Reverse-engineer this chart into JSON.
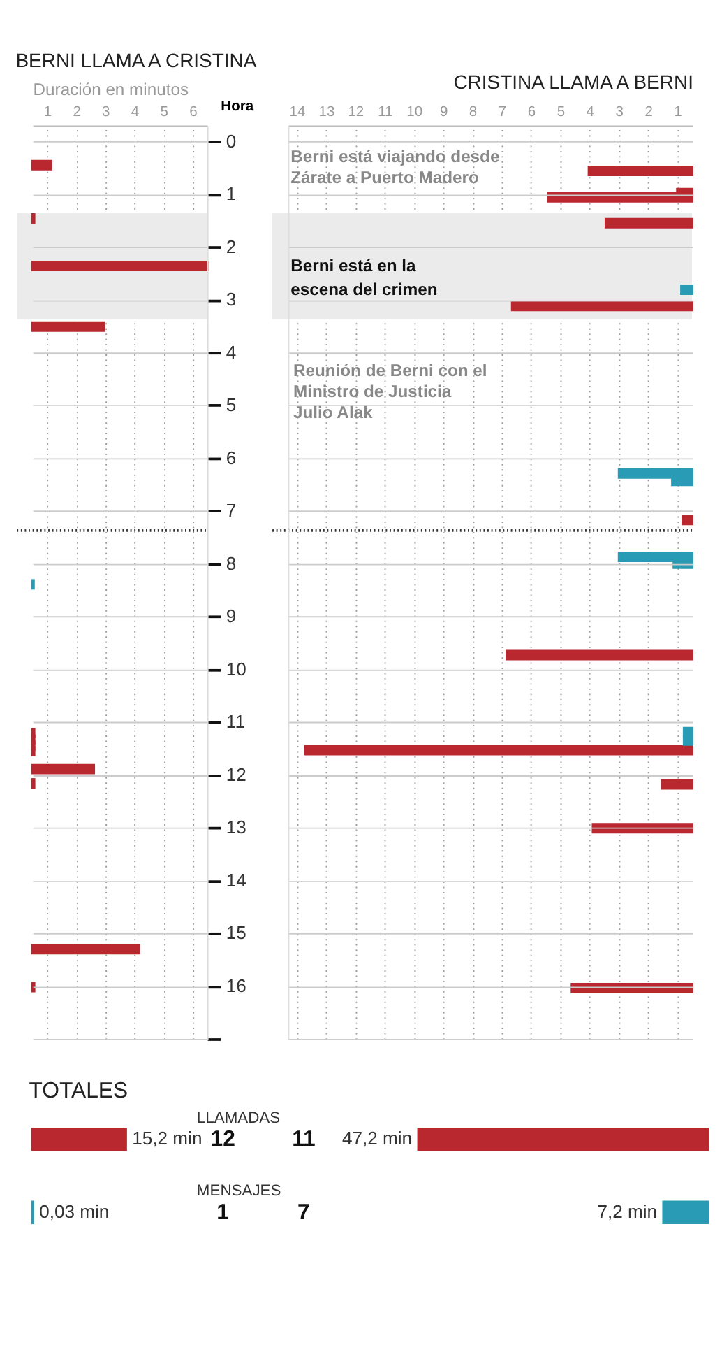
{
  "chart_data": [
    {
      "type": "bar",
      "orientation": "horizontal",
      "title": "BERNI LLAMA A CRISTINA",
      "xlabel": "Duración en minutos",
      "ylabel": "Hora",
      "xlim": [
        0,
        6
      ],
      "xticks": [
        {
          "value": 0.5,
          "label": "1"
        },
        {
          "value": 1.5,
          "label": "2"
        },
        {
          "value": 2.5,
          "label": "3"
        },
        {
          "value": 3.5,
          "label": "4"
        },
        {
          "value": 4.5,
          "label": "5"
        },
        {
          "value": 5.5,
          "label": "6"
        }
      ],
      "ylim": [
        17,
        -0.3
      ],
      "yticks": [
        0,
        1,
        2,
        3,
        4,
        5,
        6,
        7,
        8,
        9,
        10,
        11,
        12,
        13,
        14,
        15,
        16,
        {
          "value": 17,
          "label": null
        }
      ],
      "grid": true,
      "series": [
        {
          "color": "#b8282e",
          "x": [
            0.45,
            1.46,
            2.36,
            3.51,
            11.21,
            11.33,
            11.44,
            11.55,
            11.89,
            12.16,
            15.3,
            16.02
          ],
          "values": [
            0.63,
            0.05,
            6.0,
            2.45,
            0.05,
            0.05,
            0.05,
            0.05,
            2.1,
            0.05,
            3.65,
            0.05
          ]
        },
        {
          "color": "#2a9bb5",
          "x": [
            8.39
          ],
          "values": [
            0.03
          ]
        }
      ],
      "bands": [
        {
          "axis": "y",
          "from": 1.35,
          "to": 3.37,
          "color": "#ebebeb"
        }
      ],
      "ref_lines": [
        {
          "axis": "y",
          "value": 7.37,
          "line_style": "dotted",
          "color": "#333333"
        }
      ]
    },
    {
      "type": "bar",
      "orientation": "horizontal",
      "title": "CRISTINA LLAMA A BERNI",
      "xlim": [
        13.8,
        0
      ],
      "xticks": [
        {
          "value": 13.5,
          "label": "14"
        },
        {
          "value": 12.5,
          "label": "13"
        },
        {
          "value": 11.5,
          "label": "12"
        },
        {
          "value": 10.5,
          "label": "11"
        },
        {
          "value": 9.5,
          "label": "10"
        },
        {
          "value": 8.5,
          "label": "9"
        },
        {
          "value": 7.5,
          "label": "8"
        },
        {
          "value": 6.5,
          "label": "7"
        },
        {
          "value": 5.5,
          "label": "6"
        },
        {
          "value": 4.5,
          "label": "5"
        },
        {
          "value": 3.5,
          "label": "4"
        },
        {
          "value": 2.5,
          "label": "3"
        },
        {
          "value": 1.5,
          "label": "2"
        },
        {
          "value": 0.5,
          "label": "1"
        }
      ],
      "ylim": [
        17,
        -0.3
      ],
      "yticks": [
        0,
        1,
        2,
        3,
        4,
        5,
        6,
        7,
        8,
        9,
        10,
        11,
        12,
        13,
        14,
        15,
        16,
        {
          "value": 17,
          "label": null
        }
      ],
      "grid": true,
      "tick_labels": "x",
      "series": [
        {
          "color": "#b8282e",
          "x": [
            0.56,
            0.98,
            1.06,
            1.55,
            3.12,
            7.17,
            9.73,
            11.53,
            12.18,
            13.01,
            16.04
          ],
          "values": [
            3.52,
            0.5,
            4.9,
            2.94,
            6.14,
            0.31,
            6.32,
            13.2,
            1.02,
            3.38,
            4.1
          ]
        },
        {
          "color": "#2a9bb5",
          "x": [
            2.81,
            6.29,
            6.43,
            7.87,
            8.0,
            11.19,
            11.35
          ],
          "values": [
            0.36,
            2.49,
            0.67,
            2.49,
            0.62,
            0.27,
            0.27
          ]
        }
      ],
      "bands": [
        {
          "axis": "y",
          "from": 1.35,
          "to": 3.37,
          "color": "#ebebeb",
          "label": "Berni está en la escena del crimen"
        }
      ],
      "ref_lines": [
        {
          "axis": "y",
          "value": 7.37,
          "line_style": "dotted",
          "color": "#333333"
        }
      ],
      "annotations": [
        "Berni está viajando desde Zárate a Puerto Madero",
        "Reunión de Berni con el Ministro de Justicia Julio Alak"
      ]
    },
    {
      "type": "bar",
      "orientation": "horizontal",
      "title": "TOTALES",
      "categories": [
        "LLAMADAS",
        "MENSAJES"
      ],
      "tick_labels": false,
      "series": [
        {
          "colors": [
            "#b8282e",
            "#2a9bb5"
          ],
          "values": [
            15.2,
            0.03
          ],
          "value_labels": [
            "15,2 min",
            "0,03 min"
          ]
        }
      ],
      "annotations": [
        "12",
        "1"
      ]
    },
    {
      "type": "bar",
      "orientation": "horizontal",
      "categories": [
        null,
        null
      ],
      "tick_labels": false,
      "series": [
        {
          "colors": [
            "#b8282e",
            "#2a9bb5"
          ],
          "values": [
            47.2,
            7.2
          ],
          "value_labels": [
            "47,2 min",
            "7,2 min"
          ]
        }
      ],
      "annotations": [
        "11",
        "7"
      ]
    }
  ]
}
